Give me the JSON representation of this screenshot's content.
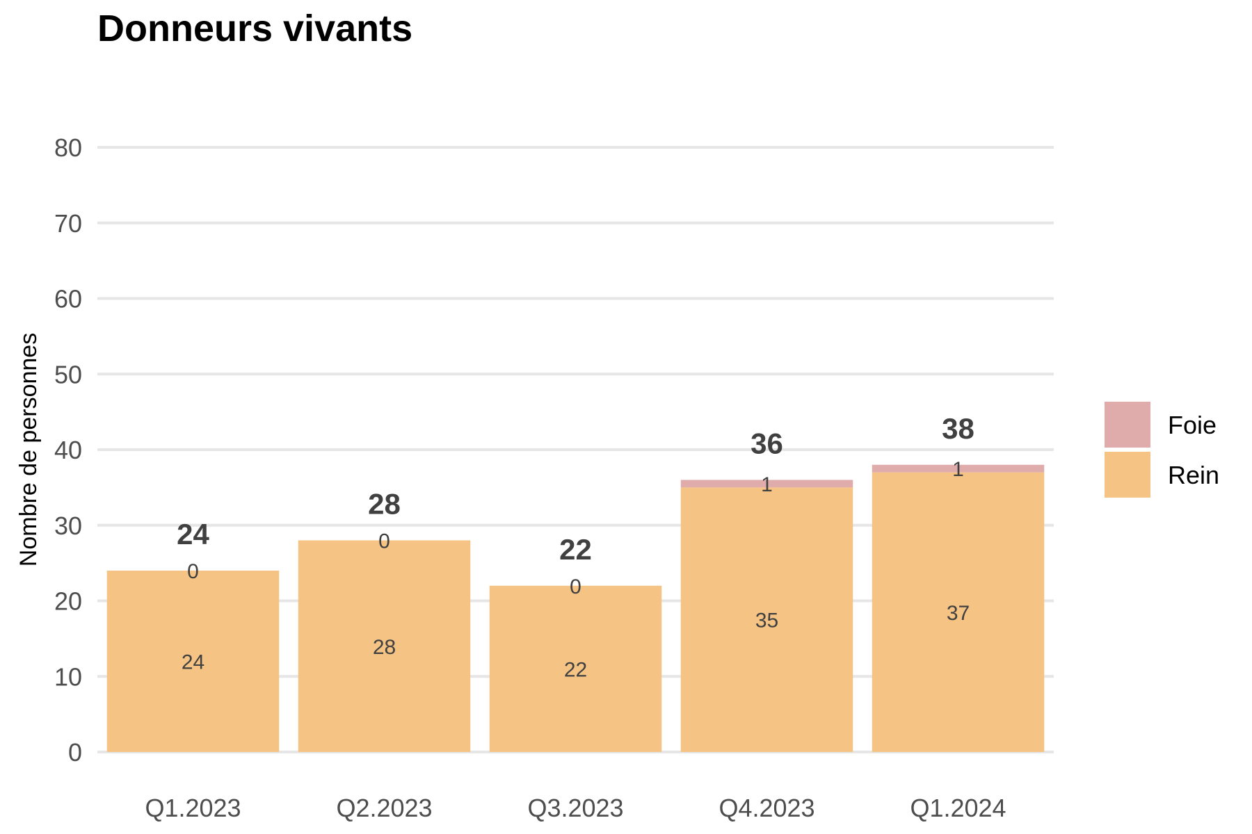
{
  "chart_data": {
    "type": "bar",
    "stacked": true,
    "title": "Donneurs vivants",
    "xlabel": "",
    "ylabel": "Nombre de personnes",
    "categories": [
      "Q1.2023",
      "Q2.2023",
      "Q3.2023",
      "Q4.2023",
      "Q1.2024"
    ],
    "series": [
      {
        "name": "Rein",
        "values": [
          24,
          28,
          22,
          35,
          37
        ],
        "color": "#f5c384"
      },
      {
        "name": "Foie",
        "values": [
          0,
          0,
          0,
          1,
          1
        ],
        "color": "#e0abab"
      }
    ],
    "totals": [
      24,
      28,
      22,
      36,
      38
    ],
    "ylim": [
      0,
      80
    ],
    "yticks": [
      0,
      10,
      20,
      30,
      40,
      50,
      60,
      70,
      80
    ],
    "grid": "horizontal",
    "legend_position": "right",
    "legend_order": [
      "Foie",
      "Rein"
    ]
  }
}
